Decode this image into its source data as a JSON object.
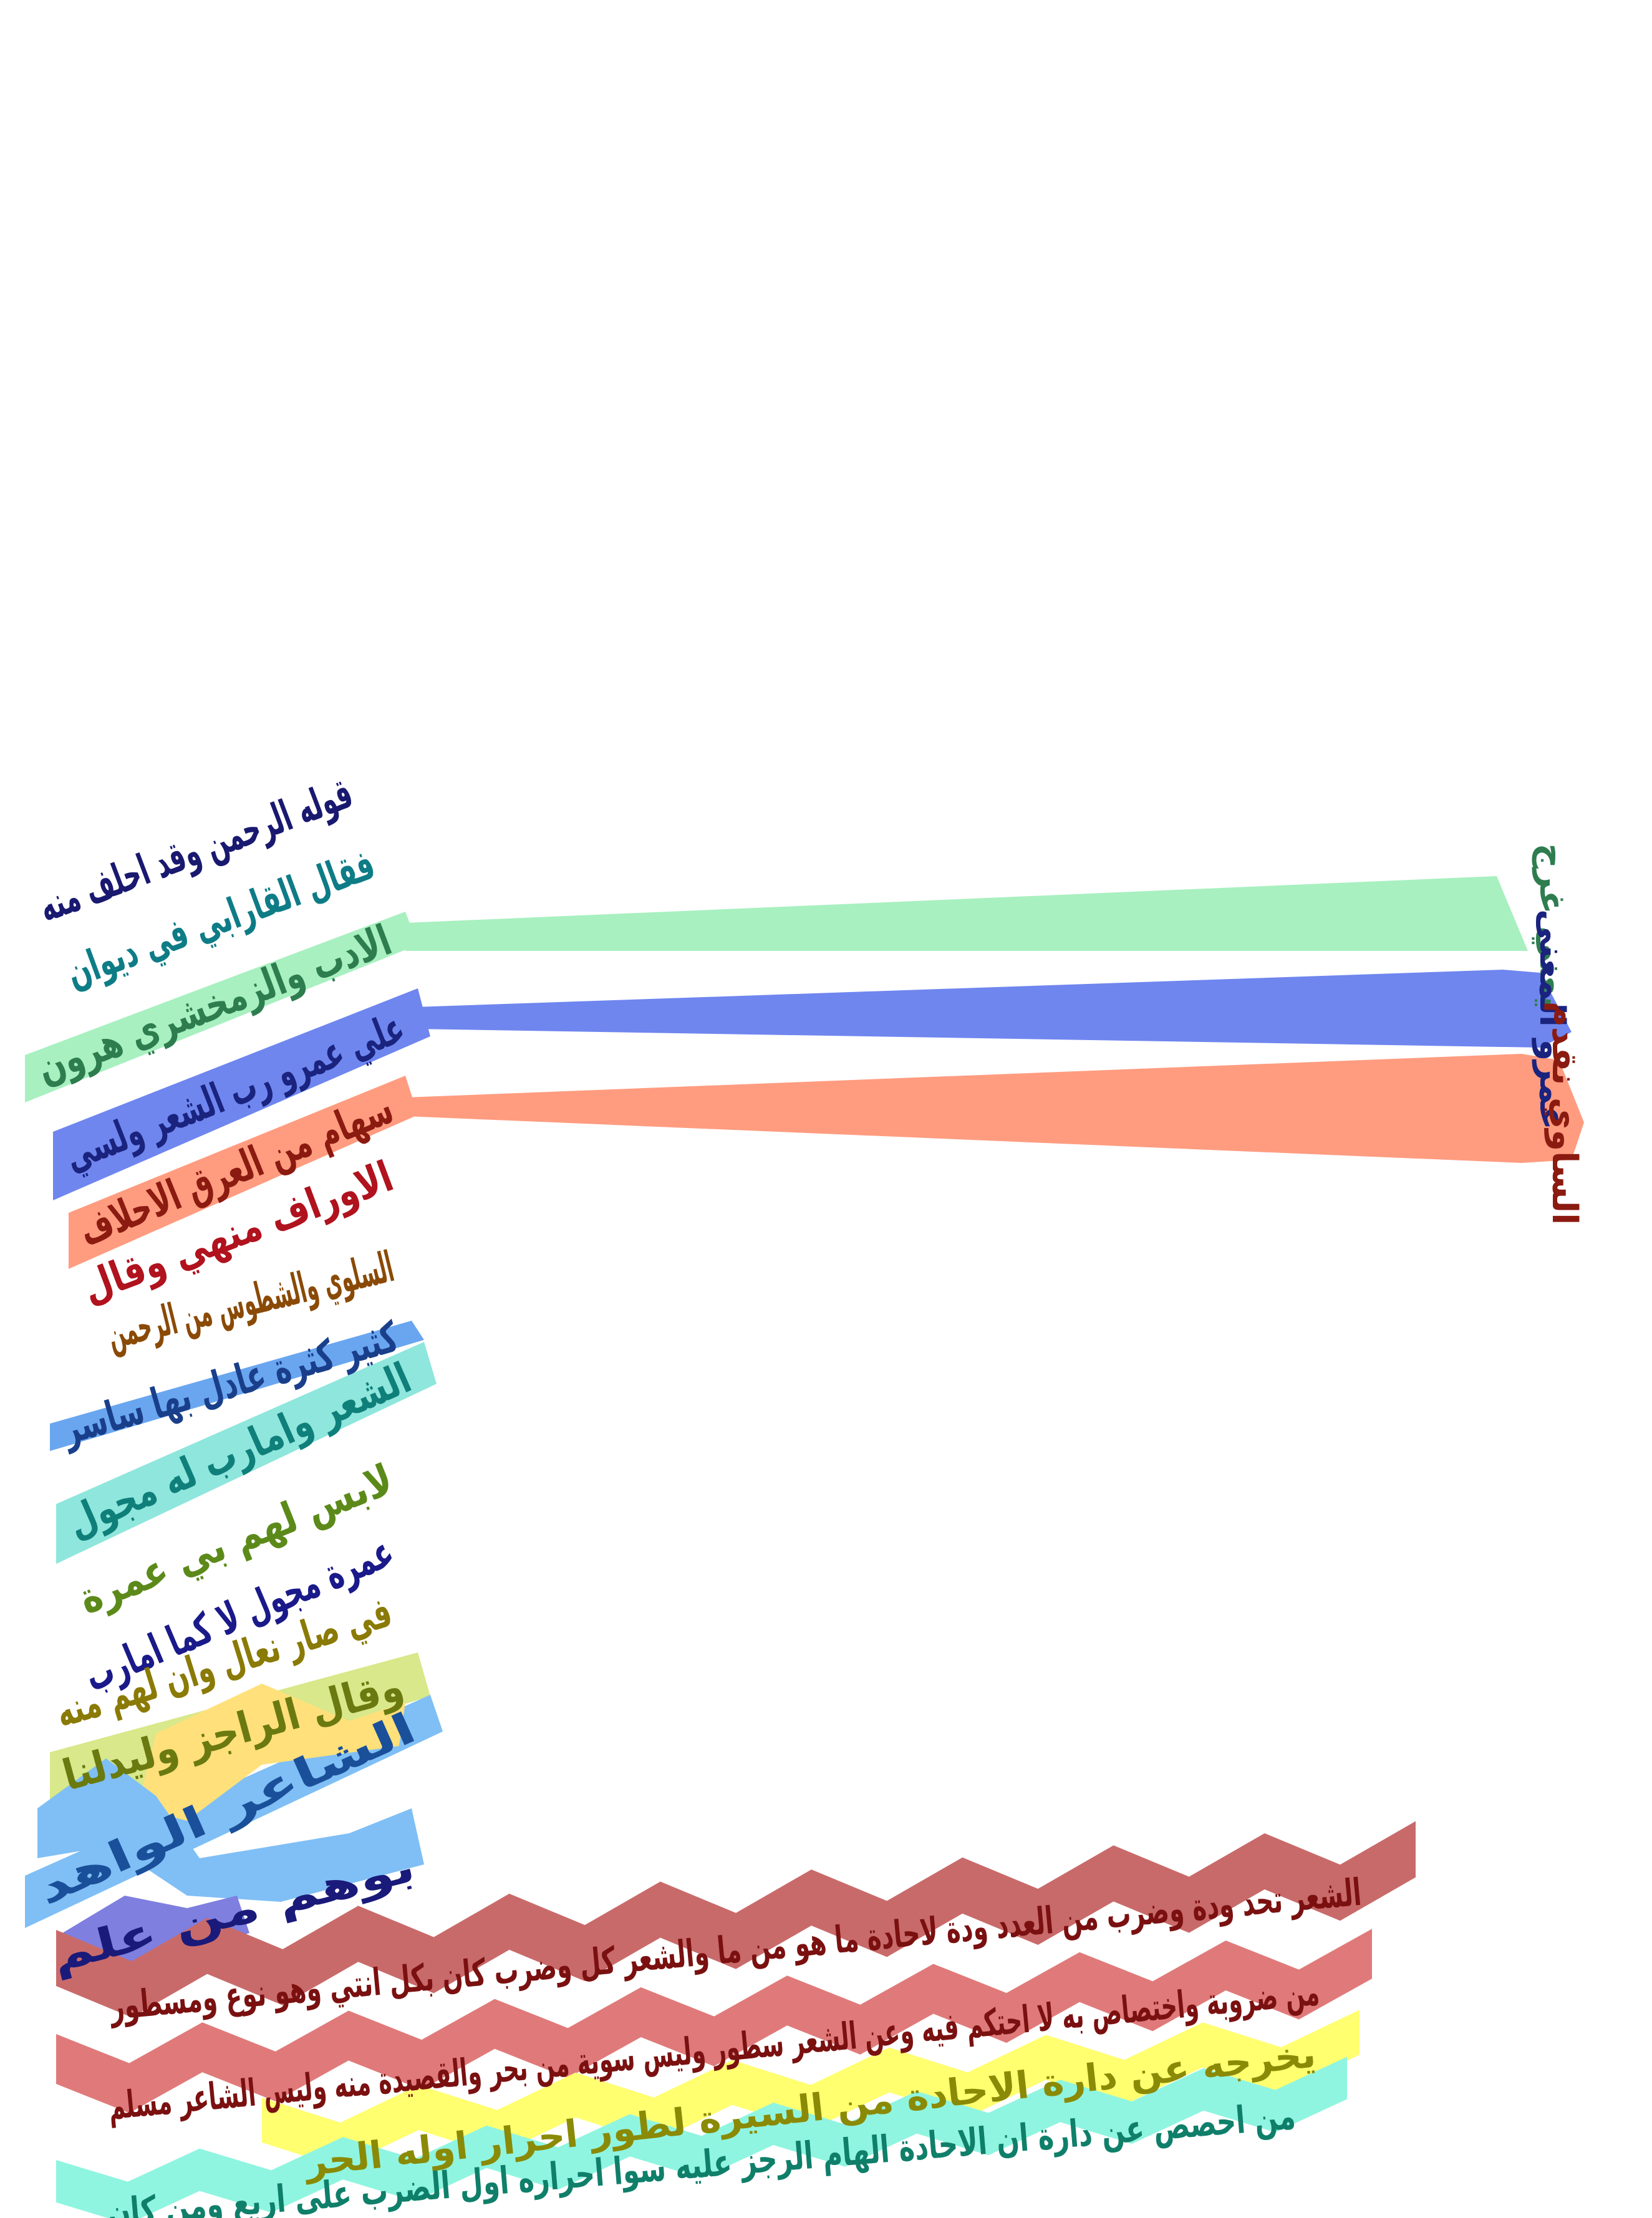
{
  "lines": [
    {
      "text": "قوله الرحمن وقد احلف منه",
      "color": "#191970",
      "band": "#7b68c8"
    },
    {
      "text": "فقال القارابي في ديوان",
      "color": "#0e7c86",
      "band": "#7fdde6"
    },
    {
      "text": "الادب والزمخشري هرون",
      "color": "#2e7d4f",
      "band": "#a8f0c0"
    },
    {
      "text": "علي عمرو رب الشعر ولسي",
      "color": "#1a237e",
      "band": "#6f86ef"
    },
    {
      "text": "سهام من العرق الاحلاف",
      "color": "#8b1a10",
      "band": "#ff9c80"
    },
    {
      "text": "الاوراف منهي وقال",
      "color": "#b0121e",
      "band": "#ff8a8a"
    },
    {
      "text": "السلوي والشطوس من الرحمن",
      "color": "#8a4a06",
      "band": "#ffd580"
    },
    {
      "text": "كثير كثرة عادل بها ساسر",
      "color": "#1a3f8a",
      "band": "#6aa6f0"
    },
    {
      "text": "الشعر وامارب له مجول",
      "color": "#0f7f7a",
      "band": "#8fe6dc"
    },
    {
      "text": "لابس لهم بي عمرة",
      "color": "#5c8a1a",
      "band": "#b8e08a"
    },
    {
      "text": "عمرة مجول لا كما امارب",
      "color": "#1a1a8a",
      "band": "#8a8aee"
    },
    {
      "text": "في صار نعال وان لهم منه",
      "color": "#8a7a06",
      "band": "#ffe07a"
    },
    {
      "text": "وقال الراجز وليدلنا",
      "color": "#6a7a10",
      "band": "#d8e88a"
    },
    {
      "text": "الشاعر الواهد",
      "color": "#1a4f9a",
      "band": "#7fbff5"
    },
    {
      "text": "بوهم من علم",
      "color": "#1a1a7a",
      "band": "#7f7fe0"
    }
  ],
  "margin_notes": [
    {
      "text": "يعني غرج",
      "color": "#2e7d4f",
      "band": "#a8f0c0"
    },
    {
      "text": "عمرو المعنى",
      "color": "#1a237e",
      "band": "#6f86ef"
    },
    {
      "text": "الساوي نقدم",
      "color": "#8b1a10",
      "band": "#ff9c80"
    }
  ],
  "bottom_lines": [
    {
      "text": "الشعر تحد ودة وضرب من العدد ودة لاحادة ما هو من ما والشعر كل وضرب كان بكل انتي وهو نوع ومسطور",
      "color": "#7a1010",
      "band": "#c96a6a"
    },
    {
      "text": "من ضروبة واختصاص به لا احتكم فيه وعن الشعر سطور وليس سوية من بحر والقصيدة منه وليس الشاعر مسلم",
      "color": "#7a1010",
      "band": "#e07a7a"
    },
    {
      "text": "يخرجه عن دارة الاحادة من السيرة لطور احرار اوله الحر",
      "color": "#8a8a06",
      "band": "#ffff70"
    },
    {
      "text": "من احصص عن دارة ان الاحادة الهام الرجز عليه سوا احراره اول الضرب على اربع ومن كان",
      "color": "#0f7f6a",
      "band": "#8ff5e0"
    }
  ]
}
